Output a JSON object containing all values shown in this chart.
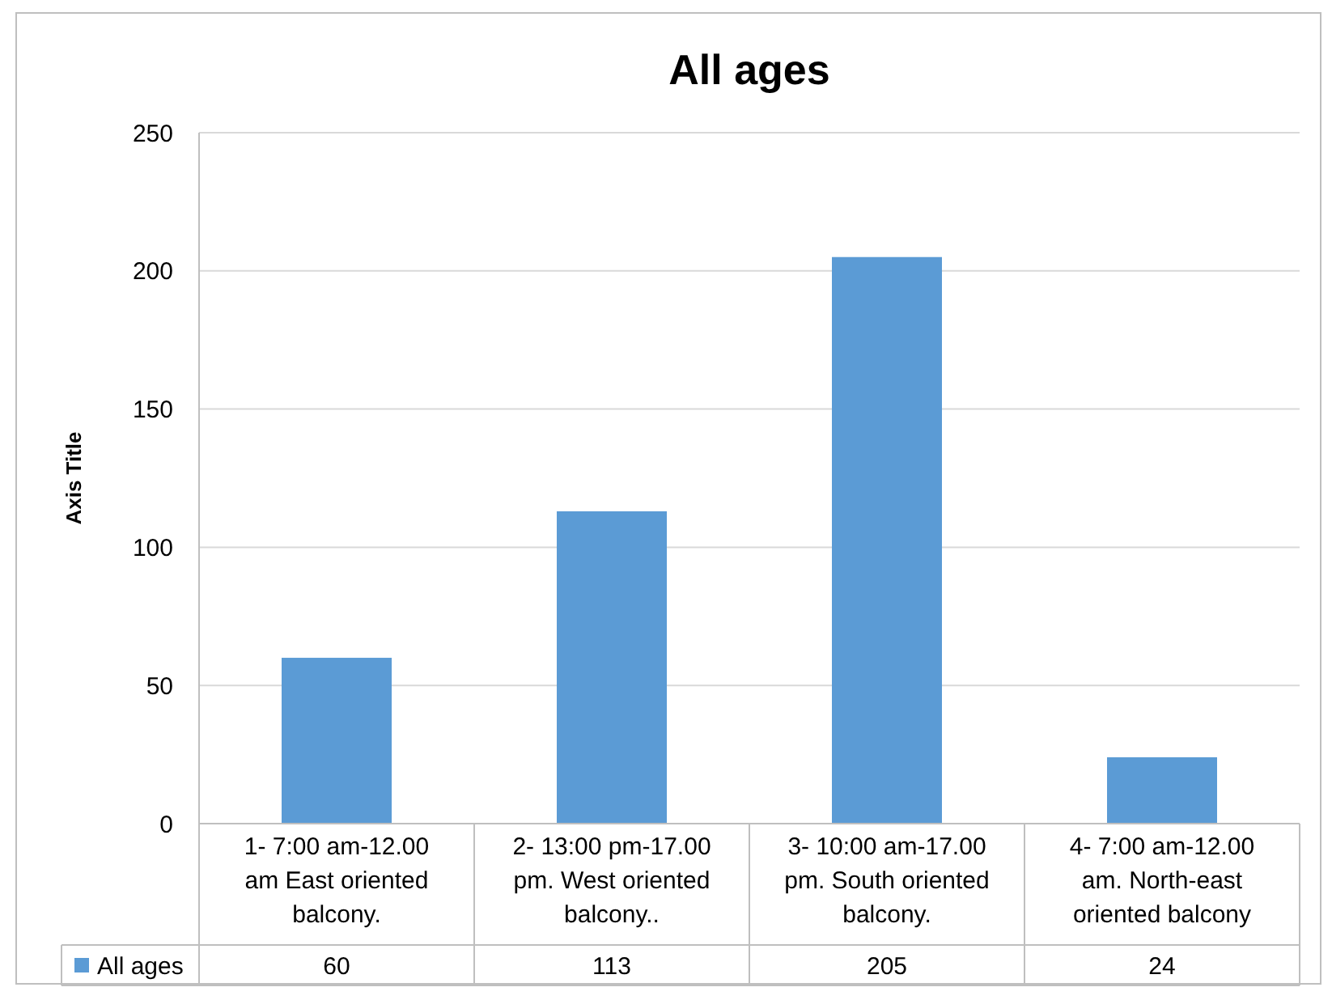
{
  "chart_data": {
    "type": "bar",
    "title": "All ages",
    "ylabel": "Axis Title",
    "categories": [
      "1- 7:00 am-12.00 am East oriented balcony.",
      "2- 13:00 pm-17.00 pm. West oriented balcony..",
      "3- 10:00 am-17.00 pm. South oriented balcony.",
      "4- 7:00 am-12.00 am. North-east oriented balcony"
    ],
    "series": [
      {
        "name": "All ages",
        "color": "#5b9bd5",
        "values": [
          60,
          113,
          205,
          24
        ]
      }
    ],
    "ylim": [
      0,
      250
    ],
    "yticks": [
      0,
      50,
      100,
      150,
      200,
      250
    ],
    "grid": "y",
    "legend": "bottom",
    "data_labels": true
  }
}
